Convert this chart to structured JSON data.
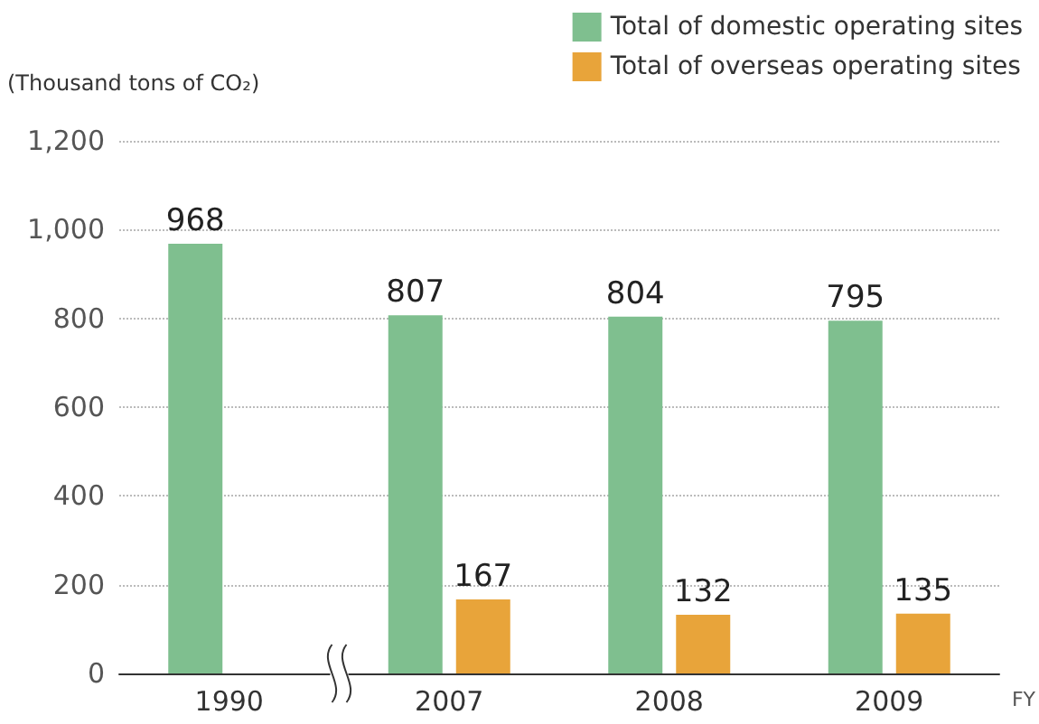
{
  "chart_data": {
    "type": "bar",
    "ylabel": "(Thousand tons of CO₂)",
    "xlabel": "FY",
    "categories": [
      "1990",
      "2007",
      "2008",
      "2009"
    ],
    "series": [
      {
        "name": "Total of domestic operating sites",
        "color": "#7fbf8f",
        "values": [
          968,
          807,
          804,
          795
        ]
      },
      {
        "name": "Total of overseas operating sites",
        "color": "#e8a43a",
        "values": [
          null,
          167,
          132,
          135
        ]
      }
    ],
    "ylim": [
      0,
      1200
    ],
    "yticks": [
      0,
      200,
      400,
      600,
      800,
      {
        "value": 1000,
        "label": "1,000"
      },
      {
        "value": 1200,
        "label": "1,200"
      }
    ],
    "grid": "y",
    "legend": "top right",
    "data_labels": true
  }
}
